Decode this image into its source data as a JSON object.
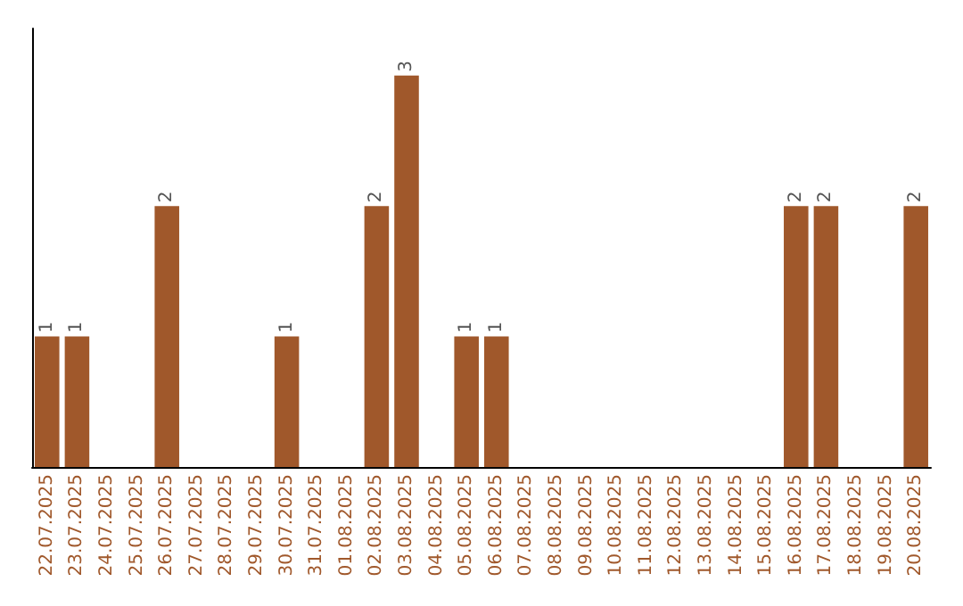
{
  "chart_data": {
    "type": "bar",
    "categories": [
      "22.07.2025",
      "23.07.2025",
      "24.07.2025",
      "25.07.2025",
      "26.07.2025",
      "27.07.2025",
      "28.07.2025",
      "29.07.2025",
      "30.07.2025",
      "31.07.2025",
      "01.08.2025",
      "02.08.2025",
      "03.08.2025",
      "04.08.2025",
      "05.08.2025",
      "06.08.2025",
      "07.08.2025",
      "08.08.2025",
      "09.08.2025",
      "10.08.2025",
      "11.08.2025",
      "12.08.2025",
      "13.08.2025",
      "14.08.2025",
      "15.08.2025",
      "16.08.2025",
      "17.08.2025",
      "18.08.2025",
      "19.08.2025",
      "20.08.2025"
    ],
    "values": [
      1,
      1,
      0,
      0,
      2,
      0,
      0,
      0,
      1,
      0,
      0,
      2,
      3,
      0,
      1,
      1,
      0,
      0,
      0,
      0,
      0,
      0,
      0,
      0,
      0,
      2,
      2,
      0,
      0,
      2
    ],
    "value_labels": [
      "1",
      "1",
      null,
      null,
      "2",
      null,
      null,
      null,
      "1",
      null,
      null,
      "2",
      "3",
      null,
      "1",
      "1",
      null,
      null,
      null,
      null,
      null,
      null,
      null,
      null,
      null,
      "2",
      "2",
      null,
      null,
      "2"
    ],
    "color": "#a0582b",
    "tick_labels": "x",
    "grid": false
  }
}
